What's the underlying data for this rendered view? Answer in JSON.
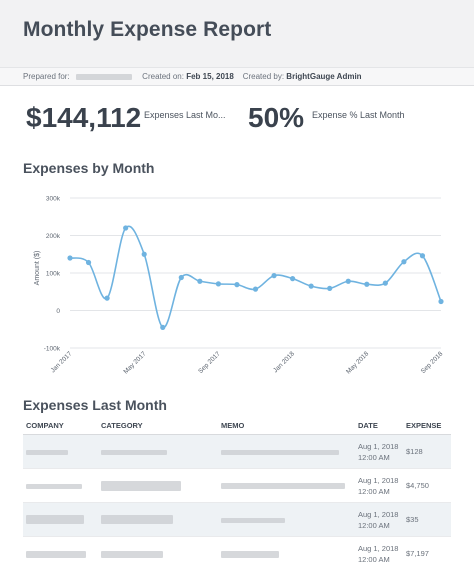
{
  "report": {
    "title": "Monthly Expense Report",
    "prepared_for_label": "Prepared for:",
    "created_on_label": "Created on:",
    "created_on_value": "Feb 15, 2018",
    "created_by_label": "Created by:",
    "created_by_value": "BrightGauge Admin"
  },
  "kpis": [
    {
      "value": "$144,112",
      "label": "Expenses Last Mo..."
    },
    {
      "value": "50%",
      "label": "Expense % Last Month"
    }
  ],
  "chart_section": {
    "title": "Expenses by Month"
  },
  "chart_data": {
    "type": "line",
    "title": "Expenses by Month",
    "ylabel": "Amount ($)",
    "xlabel": "",
    "ylim": [
      -100000,
      300000
    ],
    "y_ticks": [
      -100000,
      0,
      100000,
      200000,
      300000
    ],
    "y_tick_labels": [
      "-100k",
      "0",
      "100k",
      "200k",
      "300k"
    ],
    "x_tick_labels": [
      "Jan 2017",
      "May 2017",
      "Sep 2017",
      "Jan 2018",
      "May 2018",
      "Sep 2018"
    ],
    "x": [
      "Jan 2017",
      "Feb 2017",
      "Mar 2017",
      "Apr 2017",
      "May 2017",
      "Jun 2017",
      "Jul 2017",
      "Aug 2017",
      "Sep 2017",
      "Oct 2017",
      "Nov 2017",
      "Dec 2017",
      "Jan 2018",
      "Feb 2018",
      "Mar 2018",
      "Apr 2018",
      "May 2018",
      "Jun 2018",
      "Jul 2018",
      "Aug 2018",
      "Sep 2018"
    ],
    "values": [
      140000,
      128000,
      33000,
      220000,
      150000,
      -45000,
      88000,
      78000,
      71000,
      69000,
      57000,
      93000,
      85000,
      65000,
      59000,
      78000,
      70000,
      73000,
      130000,
      146000,
      24000
    ],
    "color": "#6fb3e0",
    "grid": true
  },
  "table_section": {
    "title": "Expenses Last Month"
  },
  "table": {
    "columns": [
      "COMPANY",
      "CATEGORY",
      "MEMO",
      "DATE",
      "EXPENSE"
    ],
    "rows": [
      {
        "date1": "Aug 1, 2018",
        "date2": "12:00 AM",
        "expense": "$128"
      },
      {
        "date1": "Aug 1, 2018",
        "date2": "12:00 AM",
        "expense": "$4,750"
      },
      {
        "date1": "Aug 1, 2018",
        "date2": "12:00 AM",
        "expense": "$35"
      },
      {
        "date1": "Aug 1, 2018",
        "date2": "12:00 AM",
        "expense": "$7,197"
      }
    ]
  }
}
